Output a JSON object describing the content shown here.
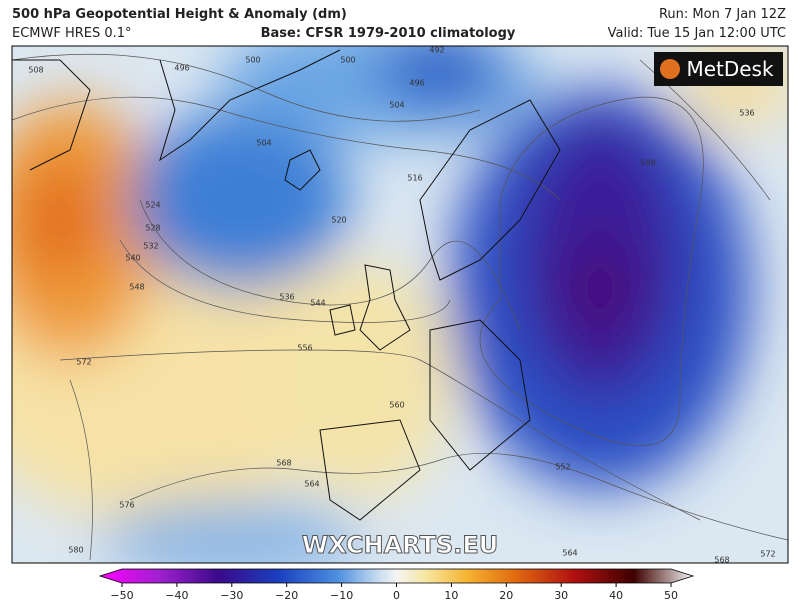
{
  "header": {
    "title": "500 hPa Geopotential Height & Anomaly (dm)",
    "model": "ECMWF HRES 0.1°",
    "base": "Base: CFSR 1979-2010 climatology",
    "run": "Run: Mon 7 Jan 12Z",
    "valid": "Valid: Tue 15 Jan 12:00 UTC"
  },
  "logo": "MetDesk",
  "watermark": "WXCHARTS.EU",
  "contour_labels": [
    "508",
    "496",
    "500",
    "500",
    "492",
    "496",
    "504",
    "504",
    "516",
    "520",
    "524",
    "528",
    "532",
    "540",
    "548",
    "536",
    "544",
    "556",
    "572",
    "560",
    "568",
    "564",
    "576",
    "580",
    "552",
    "564",
    "568",
    "572",
    "536",
    "508"
  ],
  "colorbar": {
    "ticks": [
      {
        "value": -50,
        "label": "−50"
      },
      {
        "value": -40,
        "label": "−40"
      },
      {
        "value": -30,
        "label": "−30"
      },
      {
        "value": -20,
        "label": "−20"
      },
      {
        "value": -10,
        "label": "−10"
      },
      0,
      10,
      20,
      30,
      40,
      50
    ]
  }
}
